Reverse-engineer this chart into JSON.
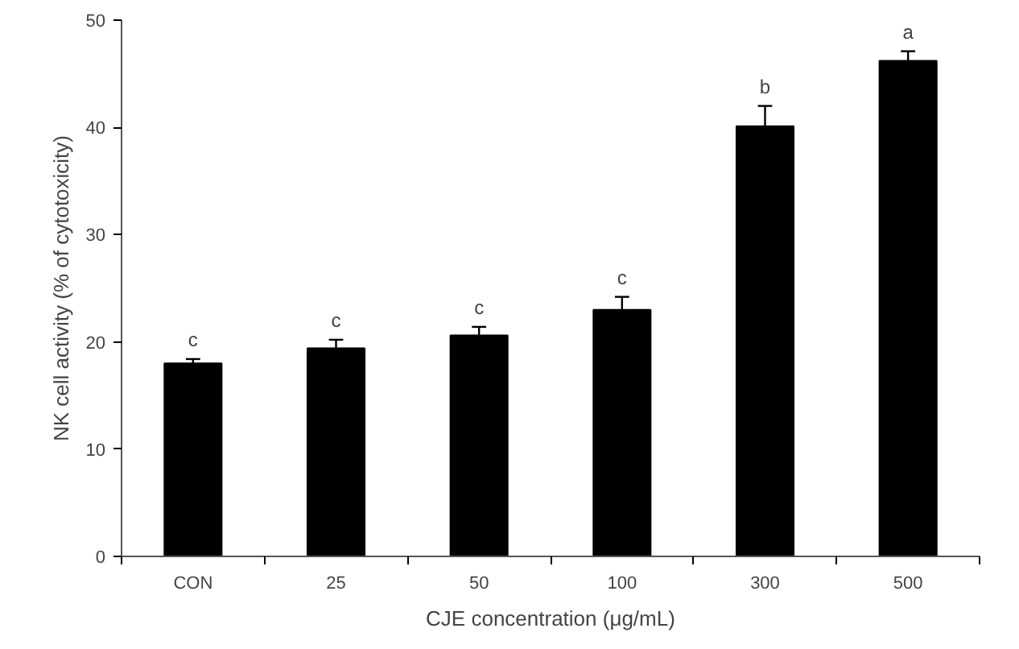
{
  "chart_data": {
    "type": "bar",
    "xlabel": "CJE concentration (μg/mL)",
    "ylabel": "NK cell activity (% of cytotoxicity)",
    "categories": [
      "CON",
      "25",
      "50",
      "100",
      "300",
      "500"
    ],
    "values": [
      18.0,
      19.4,
      20.6,
      23.0,
      40.1,
      46.2
    ],
    "errors": [
      0.4,
      0.8,
      0.8,
      1.2,
      1.9,
      0.9
    ],
    "color": "#000000",
    "ylim": [
      0,
      50
    ],
    "yticks": [
      0,
      10,
      20,
      30,
      40,
      50
    ],
    "grid": false,
    "annotations": [
      {
        "text": "c",
        "x": "CON",
        "y": 18.4
      },
      {
        "text": "c",
        "x": "25",
        "y": 20.2
      },
      {
        "text": "c",
        "x": "50",
        "y": 21.4
      },
      {
        "text": "c",
        "x": "100",
        "y": 24.2
      },
      {
        "text": "b",
        "x": "300",
        "y": 42.0
      },
      {
        "text": "a",
        "x": "500",
        "y": 47.1
      }
    ]
  }
}
